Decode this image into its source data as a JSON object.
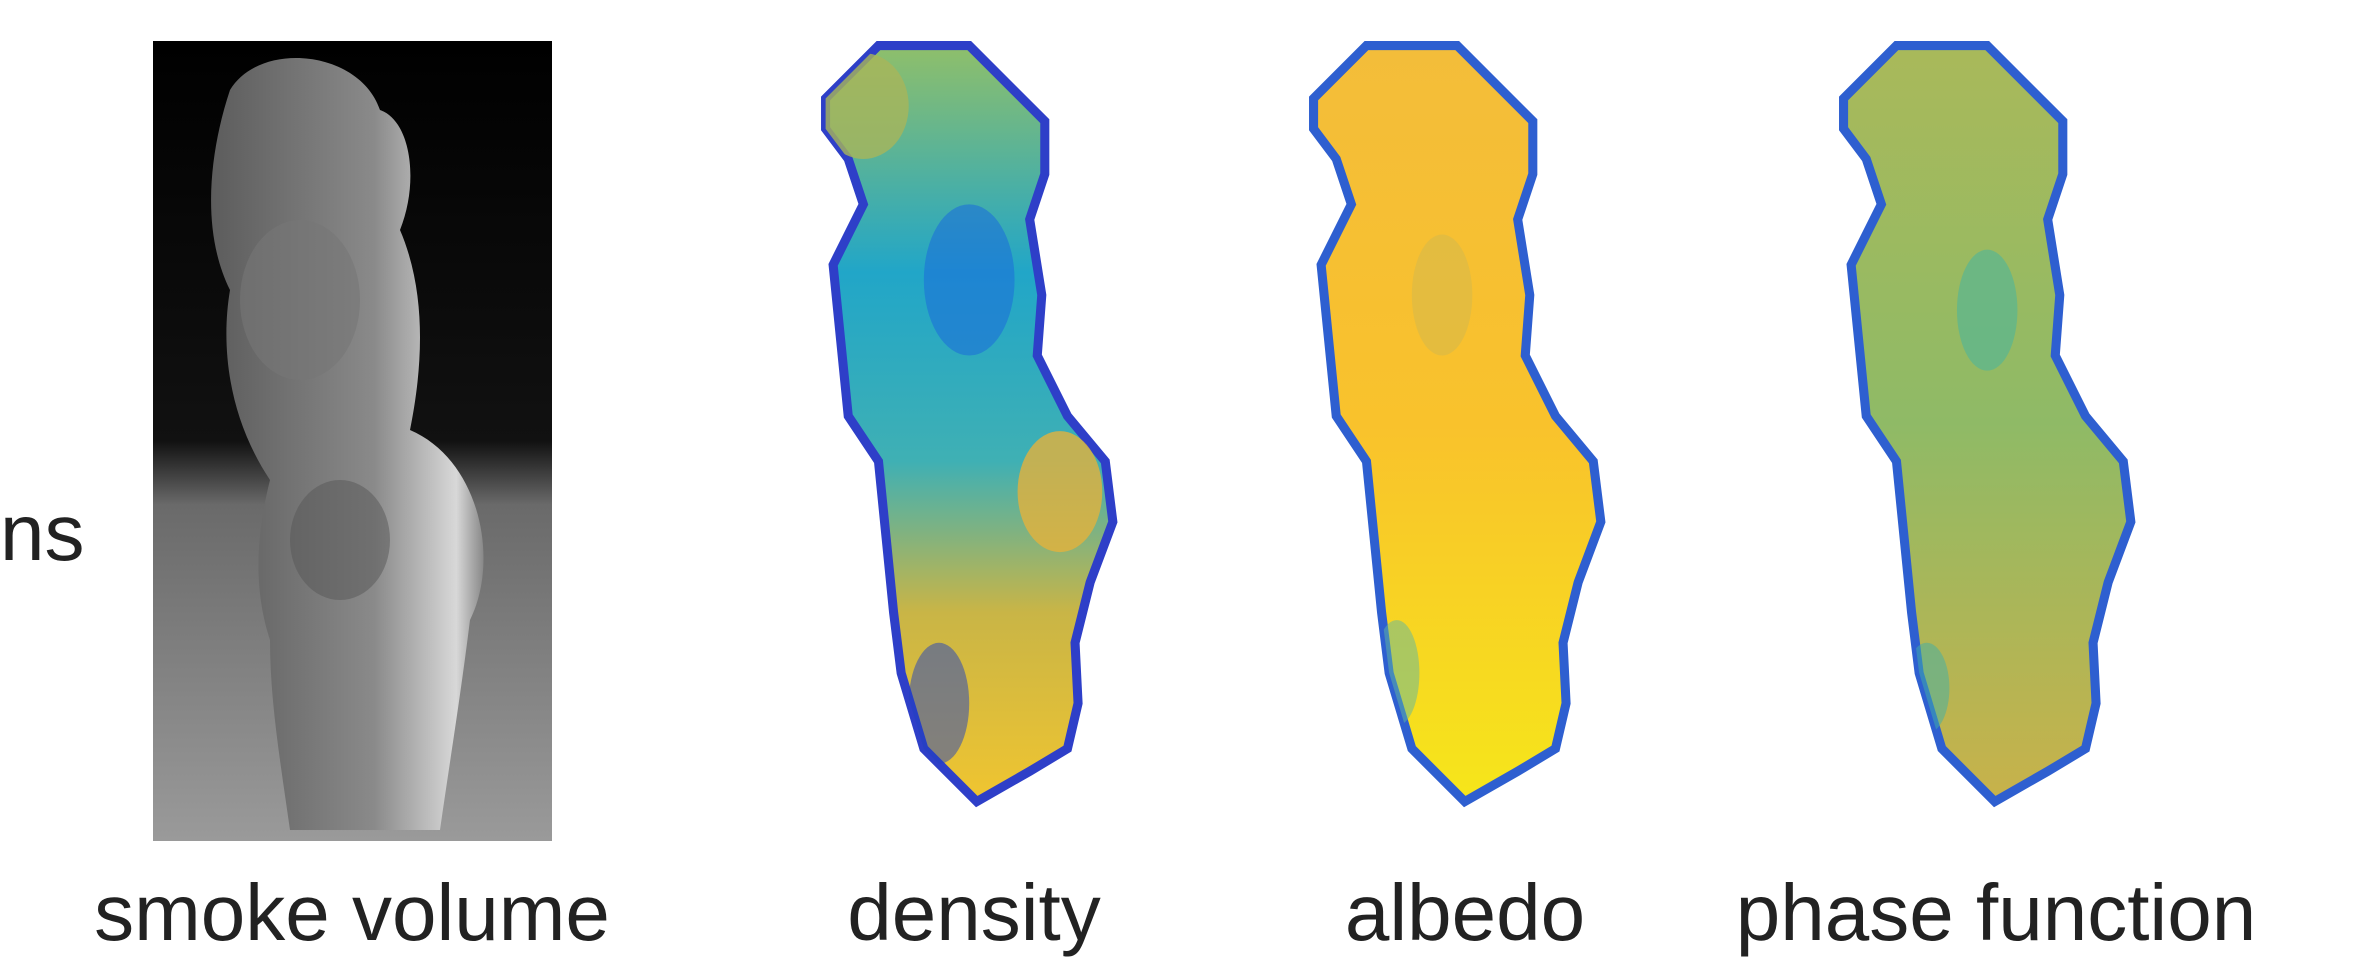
{
  "left_text": "ns",
  "panels": [
    {
      "caption": "smoke volume"
    },
    {
      "caption": "density"
    },
    {
      "caption": "albedo"
    },
    {
      "caption": "phase function"
    }
  ]
}
